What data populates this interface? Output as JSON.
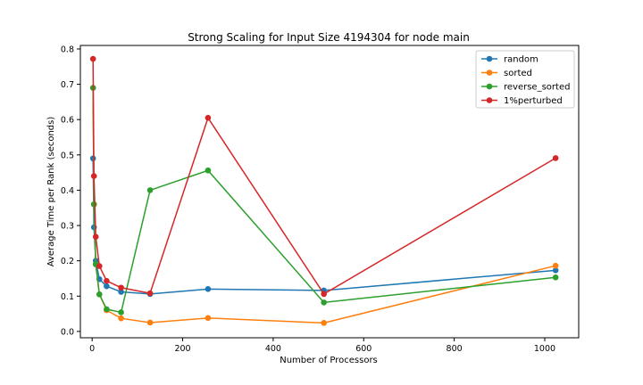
{
  "chart_data": {
    "type": "line",
    "title": "Strong Scaling for Input Size 4194304 for node main",
    "xlabel": "Number of Processors",
    "ylabel": "Average Time per Rank (seconds)",
    "xlim": [
      -26,
      1075
    ],
    "ylim": [
      -0.018,
      0.81
    ],
    "xticks": [
      0,
      200,
      400,
      600,
      800,
      1000
    ],
    "yticks": [
      0.0,
      0.1,
      0.2,
      0.3,
      0.4,
      0.5,
      0.6,
      0.7,
      0.8
    ],
    "grid": false,
    "legend_position": "top-right",
    "x": [
      2,
      4,
      8,
      16,
      32,
      64,
      128,
      256,
      512,
      1024
    ],
    "series": [
      {
        "name": "random",
        "color": "#1f77b4",
        "values": [
          0.49,
          0.295,
          0.2,
          0.148,
          0.128,
          0.112,
          0.106,
          0.12,
          0.116,
          0.173
        ]
      },
      {
        "name": "sorted",
        "color": "#ff7f0e",
        "values": [
          0.69,
          0.36,
          0.19,
          0.105,
          0.06,
          0.037,
          0.025,
          0.038,
          0.024,
          0.186
        ]
      },
      {
        "name": "reverse_sorted",
        "color": "#2ca02c",
        "values": [
          0.69,
          0.36,
          0.19,
          0.105,
          0.063,
          0.054,
          0.4,
          0.456,
          0.082,
          0.153
        ]
      },
      {
        "name": "1%perturbed",
        "color": "#d62728",
        "values": [
          0.772,
          0.44,
          0.268,
          0.185,
          0.143,
          0.124,
          0.108,
          0.605,
          0.106,
          0.491
        ]
      }
    ]
  }
}
